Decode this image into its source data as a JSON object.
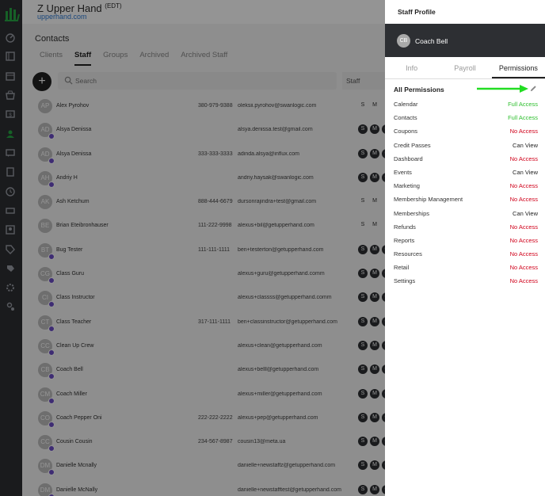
{
  "header": {
    "title": "Z Upper Hand",
    "title_suffix": "(EDT)",
    "subtitle": "upperhand.com"
  },
  "nav_icons": [
    "dashboard-icon",
    "book-icon",
    "calendar-icon",
    "store-icon",
    "money-icon",
    "contacts-icon",
    "chat-icon",
    "reports-icon",
    "clock-icon",
    "ticket-icon",
    "membership-icon",
    "tag-icon",
    "coupon-icon",
    "settings-icon",
    "user-settings-icon"
  ],
  "contacts": {
    "title": "Contacts",
    "tabs": [
      "Clients",
      "Staff",
      "Groups",
      "Archived",
      "Archived Staff"
    ],
    "active_tab": "Staff",
    "search_placeholder": "Search",
    "filter_label": "Staff",
    "rows": [
      {
        "initials": "AP",
        "name": "Alex Pyrohov",
        "phone": "380-979-9388",
        "email": "oleksii.pyrohov@swanlogic.com",
        "tags": [
          "S",
          "M"
        ],
        "badge": false
      },
      {
        "initials": "AD",
        "name": "Alsya Denissa",
        "phone": "",
        "email": "alsya.denissa.test@gmail.com",
        "tags": [
          "S",
          "M",
          "C"
        ],
        "badge": true
      },
      {
        "initials": "AD",
        "name": "Alsya Denissa",
        "phone": "333-333-3333",
        "email": "adinda.alsya@influx.com",
        "tags": [
          "S",
          "M",
          "C"
        ],
        "badge": true
      },
      {
        "initials": "AH",
        "name": "Andriy H",
        "phone": "",
        "email": "andriy.haysak@swanlogic.com",
        "tags": [
          "S",
          "M",
          "C"
        ],
        "badge": true
      },
      {
        "initials": "AK",
        "name": "Ash Ketchum",
        "phone": "888-444-6679",
        "email": "dursonrajindra+test@gmail.com",
        "tags": [
          "S",
          "M"
        ],
        "badge": false
      },
      {
        "initials": "BE",
        "name": "Brian Eteibronhauser",
        "phone": "111-222-9998",
        "email": "alexus+bil@getupperhand.com",
        "tags": [
          "S",
          "M"
        ],
        "badge": false
      },
      {
        "initials": "BT",
        "name": "Bug Tester",
        "phone": "111-111-1111",
        "email": "ben+testerton@getupperhand.com",
        "tags": [
          "S",
          "M",
          "C"
        ],
        "badge": true
      },
      {
        "initials": "CG",
        "name": "Class Guru",
        "phone": "",
        "email": "alexus+guru@getupperhand.comm",
        "tags": [
          "S",
          "M",
          "C"
        ],
        "badge": true
      },
      {
        "initials": "CI",
        "name": "Class Instructor",
        "phone": "",
        "email": "alexus+classss@getupperhand.comm",
        "tags": [
          "S",
          "M",
          "C"
        ],
        "badge": true
      },
      {
        "initials": "CT",
        "name": "Class Teacher",
        "phone": "317-111-1111",
        "email": "ben+classinstructor@getupperhand.com",
        "tags": [
          "S",
          "M",
          "C"
        ],
        "badge": true
      },
      {
        "initials": "CC",
        "name": "Clean Up Crew",
        "phone": "",
        "email": "alexus+clean@getupperhand.com",
        "tags": [
          "S",
          "M",
          "C"
        ],
        "badge": true
      },
      {
        "initials": "CB",
        "name": "Coach Bell",
        "phone": "",
        "email": "alexus+belll@getupperhand.com",
        "tags": [
          "S",
          "M",
          "C"
        ],
        "badge": true
      },
      {
        "initials": "CM",
        "name": "Coach Miller",
        "phone": "",
        "email": "alexus+miller@getupperhand.com",
        "tags": [
          "S",
          "M",
          "C"
        ],
        "badge": true
      },
      {
        "initials": "CO",
        "name": "Coach Pepper Oni",
        "phone": "222-222-2222",
        "email": "alexus+pep@getupperhand.com",
        "tags": [
          "S",
          "M",
          "C"
        ],
        "badge": true
      },
      {
        "initials": "CC",
        "name": "Cousin Cousin",
        "phone": "234-567-8987",
        "email": "cousin13@meta.ua",
        "tags": [
          "S",
          "M",
          "C"
        ],
        "badge": true
      },
      {
        "initials": "DM",
        "name": "Danielle Mcnally",
        "phone": "",
        "email": "danielle+newstaffz@getupperhand.com",
        "tags": [
          "S",
          "M",
          "C"
        ],
        "badge": true
      },
      {
        "initials": "DM",
        "name": "Danielle McNally",
        "phone": "",
        "email": "danielle+newstafftest@getupperhand.com",
        "tags": [
          "S",
          "M",
          "C"
        ],
        "badge": true
      }
    ]
  },
  "panel": {
    "title": "Staff Profile",
    "staff_initials": "CB",
    "staff_name": "Coach Bell",
    "tabs": [
      "Info",
      "Payroll",
      "Permissions"
    ],
    "active_tab": "Permissions",
    "section_title": "All Permissions",
    "permissions": [
      {
        "label": "Calendar",
        "value": "Full Access",
        "level": "full"
      },
      {
        "label": "Contacts",
        "value": "Full Access",
        "level": "full"
      },
      {
        "label": "Coupons",
        "value": "No Access",
        "level": "none"
      },
      {
        "label": "Credit Passes",
        "value": "Can View",
        "level": "view"
      },
      {
        "label": "Dashboard",
        "value": "No Access",
        "level": "none"
      },
      {
        "label": "Events",
        "value": "Can View",
        "level": "view"
      },
      {
        "label": "Marketing",
        "value": "No Access",
        "level": "none"
      },
      {
        "label": "Membership Management",
        "value": "No Access",
        "level": "none"
      },
      {
        "label": "Memberships",
        "value": "Can View",
        "level": "view"
      },
      {
        "label": "Refunds",
        "value": "No Access",
        "level": "none"
      },
      {
        "label": "Reports",
        "value": "No Access",
        "level": "none"
      },
      {
        "label": "Resources",
        "value": "No Access",
        "level": "none"
      },
      {
        "label": "Retail",
        "value": "No Access",
        "level": "none"
      },
      {
        "label": "Settings",
        "value": "No Access",
        "level": "none"
      }
    ]
  },
  "colors": {
    "full": "#2fbf2f",
    "none": "#d0021b",
    "view": "#222222",
    "arrow": "#22dd22",
    "sidebar": "#2d2f33",
    "link": "#2e7bd6"
  }
}
